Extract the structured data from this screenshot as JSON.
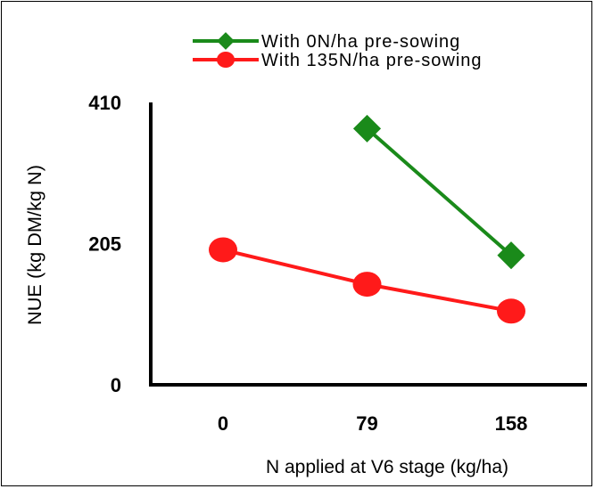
{
  "chart_data": {
    "type": "line",
    "x": [
      0,
      79,
      158
    ],
    "x_tick_labels": [
      "0",
      "79",
      "158"
    ],
    "xlabel": "N applied at V6 stage (kg/ha)",
    "ylabel": "NUE (kg DM/kg N)",
    "ylim": [
      0,
      410
    ],
    "y_ticks": [
      0,
      205,
      410
    ],
    "y_tick_labels": [
      "0",
      "205",
      "410"
    ],
    "grid": false,
    "legend_position": "top-right",
    "series": [
      {
        "name": "With 0N/ha pre-sowing",
        "color": "#1a8a1a",
        "marker": "diamond",
        "x": [
          79,
          158
        ],
        "values": [
          372,
          188
        ]
      },
      {
        "name": "With 135N/ha pre-sowing",
        "color": "#ff1a1a",
        "marker": "circle",
        "x": [
          0,
          79,
          158
        ],
        "values": [
          196,
          146,
          107
        ]
      }
    ]
  }
}
